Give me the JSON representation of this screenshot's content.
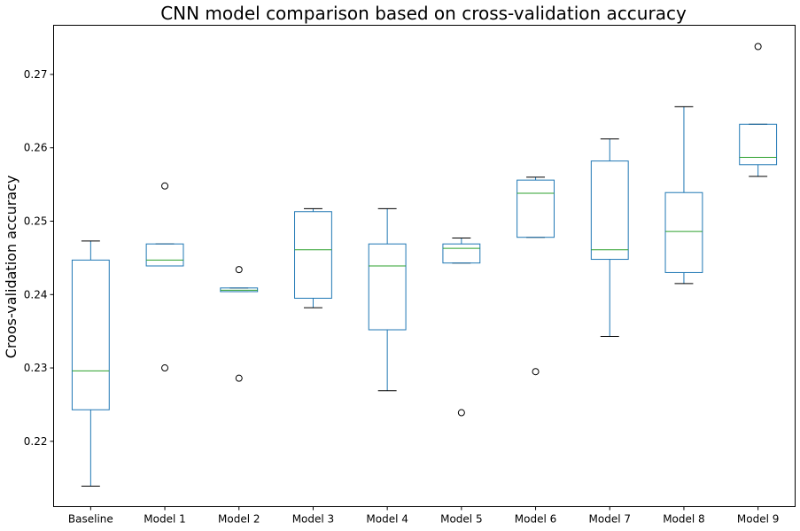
{
  "chart_data": {
    "type": "box",
    "title": "CNN model comparison based on cross-validation accuracy",
    "xlabel": "",
    "ylabel": "Croos-validation accuracy",
    "ylim": [
      0.2111,
      0.2767
    ],
    "yticks": [
      "0.22",
      "0.23",
      "0.24",
      "0.25",
      "0.26",
      "0.27"
    ],
    "ytick_values": [
      0.22,
      0.23,
      0.24,
      0.25,
      0.26,
      0.27
    ],
    "grid": false,
    "colors": {
      "box": "#1f77b4",
      "median": "#2ca02c",
      "whisker_cap": "#000000",
      "flier": "#000000"
    },
    "categories": [
      "Baseline",
      "Model 1",
      "Model 2",
      "Model 3",
      "Model 4",
      "Model 5",
      "Model 6",
      "Model 7",
      "Model 8",
      "Model 9"
    ],
    "boxes": [
      {
        "name": "Baseline",
        "whislo": 0.2139,
        "q1": 0.2243,
        "med": 0.2296,
        "q3": 0.2447,
        "whishi": 0.2473,
        "fliers": []
      },
      {
        "name": "Model 1",
        "whislo": 0.2439,
        "q1": 0.2439,
        "med": 0.2447,
        "q3": 0.2469,
        "whishi": 0.2469,
        "fliers": [
          0.2548,
          0.23
        ]
      },
      {
        "name": "Model 2",
        "whislo": 0.2404,
        "q1": 0.2404,
        "med": 0.2406,
        "q3": 0.2409,
        "whishi": 0.2409,
        "fliers": [
          0.2434,
          0.2286
        ]
      },
      {
        "name": "Model 3",
        "whislo": 0.2382,
        "q1": 0.2395,
        "med": 0.2461,
        "q3": 0.2513,
        "whishi": 0.2517,
        "fliers": []
      },
      {
        "name": "Model 4",
        "whislo": 0.2269,
        "q1": 0.2352,
        "med": 0.2439,
        "q3": 0.2469,
        "whishi": 0.2517,
        "fliers": []
      },
      {
        "name": "Model 5",
        "whislo": 0.2443,
        "q1": 0.2443,
        "med": 0.2463,
        "q3": 0.2469,
        "whishi": 0.2477,
        "fliers": [
          0.2239
        ]
      },
      {
        "name": "Model 6",
        "whislo": 0.2478,
        "q1": 0.2478,
        "med": 0.2538,
        "q3": 0.2556,
        "whishi": 0.256,
        "fliers": [
          0.2295
        ]
      },
      {
        "name": "Model 7",
        "whislo": 0.2343,
        "q1": 0.2448,
        "med": 0.2461,
        "q3": 0.2582,
        "whishi": 0.2612,
        "fliers": []
      },
      {
        "name": "Model 8",
        "whislo": 0.2415,
        "q1": 0.243,
        "med": 0.2486,
        "q3": 0.2539,
        "whishi": 0.2656,
        "fliers": []
      },
      {
        "name": "Model 9",
        "whislo": 0.2561,
        "q1": 0.2577,
        "med": 0.2587,
        "q3": 0.2632,
        "whishi": 0.2632,
        "fliers": [
          0.2738
        ]
      }
    ]
  }
}
